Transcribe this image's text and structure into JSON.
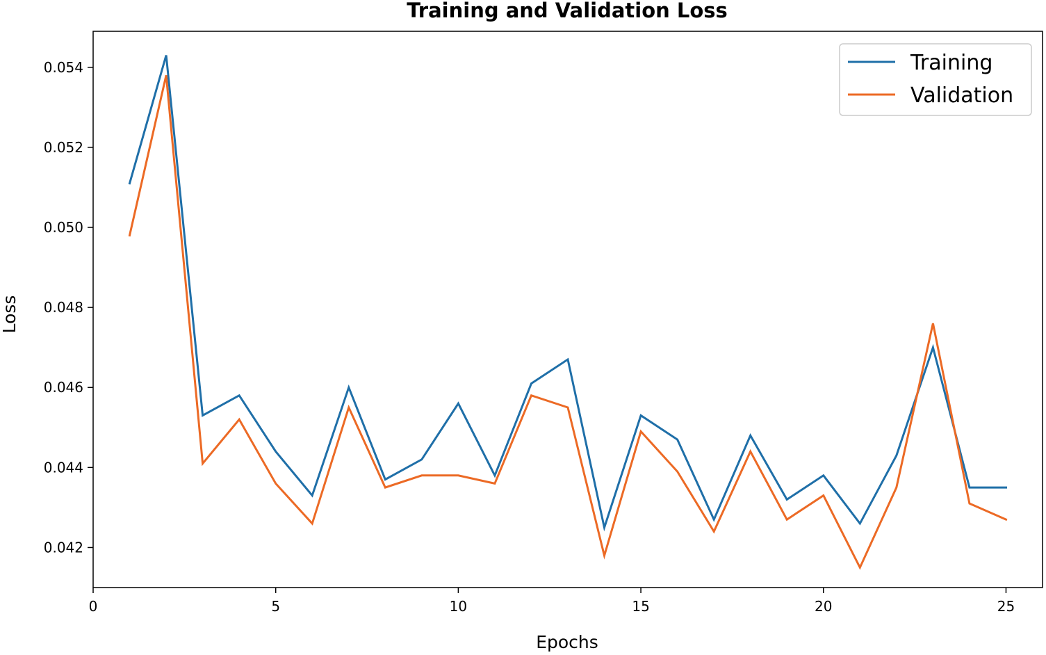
{
  "chart_data": {
    "type": "line",
    "title": "Training and Validation Loss",
    "xlabel": "Epochs",
    "ylabel": "Loss",
    "xlim": [
      0,
      26
    ],
    "ylim": [
      0.041,
      0.0549
    ],
    "xticks": [
      0,
      5,
      10,
      15,
      20,
      25
    ],
    "yticks": [
      0.042,
      0.044,
      0.046,
      0.048,
      0.05,
      0.052,
      0.054
    ],
    "xtick_labels": [
      "0",
      "5",
      "10",
      "15",
      "20",
      "25"
    ],
    "ytick_labels": [
      "0.042",
      "0.044",
      "0.046",
      "0.048",
      "0.050",
      "0.052",
      "0.054"
    ],
    "grid": false,
    "legend_position": "top-right",
    "x": [
      1,
      2,
      3,
      4,
      5,
      6,
      7,
      8,
      9,
      10,
      11,
      12,
      13,
      14,
      15,
      16,
      17,
      18,
      19,
      20,
      21,
      22,
      23,
      24,
      25
    ],
    "series": [
      {
        "name": "Training",
        "color": "#1f6fa8",
        "values": [
          0.0511,
          0.0543,
          0.0453,
          0.0458,
          0.0444,
          0.0433,
          0.046,
          0.0437,
          0.0442,
          0.0456,
          0.0438,
          0.0461,
          0.0467,
          0.0425,
          0.0453,
          0.0447,
          0.0427,
          0.0448,
          0.0432,
          0.0438,
          0.0426,
          0.0443,
          0.047,
          0.0435,
          0.0435
        ]
      },
      {
        "name": "Validation",
        "color": "#ec6a25",
        "values": [
          0.0498,
          0.0538,
          0.0441,
          0.0452,
          0.0436,
          0.0426,
          0.0455,
          0.0435,
          0.0438,
          0.0438,
          0.0436,
          0.0458,
          0.0455,
          0.0418,
          0.0449,
          0.0439,
          0.0424,
          0.0444,
          0.0427,
          0.0433,
          0.0415,
          0.0435,
          0.0476,
          0.0431,
          0.0427
        ]
      }
    ]
  }
}
